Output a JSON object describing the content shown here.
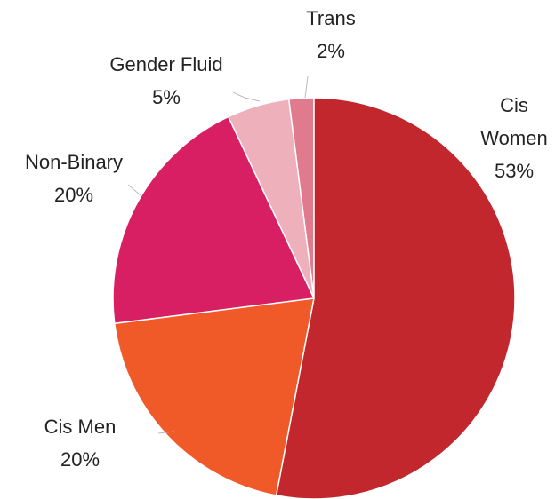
{
  "chart_data": {
    "type": "pie",
    "categories": [
      "Cis Women",
      "Cis Men",
      "Non-Binary",
      "Gender Fluid",
      "Trans"
    ],
    "values": [
      53,
      20,
      20,
      5,
      2
    ],
    "value_labels": [
      "53%",
      "20%",
      "20%",
      "5%",
      "2%"
    ],
    "colors": [
      "#c1272d",
      "#f05a28",
      "#d81f63",
      "#eeb1bb",
      "#e07a8d"
    ]
  }
}
